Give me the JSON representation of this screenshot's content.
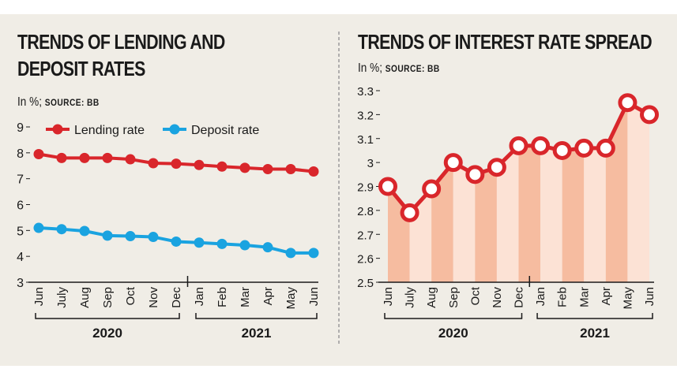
{
  "left_chart": {
    "title_line1": "TRENDS OF LENDING AND",
    "title_line2": "DEPOSIT RATES",
    "unit_text": "In %;",
    "source_text": "SOURCE: BB"
  },
  "right_chart": {
    "title": "TRENDS OF INTEREST RATE SPREAD",
    "unit_text": "In %;",
    "source_text": "SOURCE: BB"
  },
  "colors": {
    "lending": "#d9262b",
    "deposit": "#1aa3e0",
    "area_dark": "#f6bca0",
    "area_light": "#fce2d5"
  },
  "chart_data": [
    {
      "type": "line",
      "title": "TRENDS OF LENDING AND DEPOSIT RATES",
      "ylabel": "In %",
      "categories": [
        "Jun",
        "July",
        "Aug",
        "Sep",
        "Oct",
        "Nov",
        "Dec",
        "Jan",
        "Feb",
        "Mar",
        "Apr",
        "May",
        "Jun"
      ],
      "year_groups": [
        {
          "label": "2020",
          "start": 0,
          "end": 6
        },
        {
          "label": "2021",
          "start": 7,
          "end": 12
        }
      ],
      "ylim": [
        3,
        9
      ],
      "yticks": [
        "3",
        "4",
        "5",
        "6",
        "7",
        "8",
        "9"
      ],
      "series": [
        {
          "name": "Lending rate",
          "values": [
            7.95,
            7.8,
            7.8,
            7.8,
            7.75,
            7.6,
            7.58,
            7.53,
            7.47,
            7.42,
            7.37,
            7.37,
            7.28
          ]
        },
        {
          "name": "Deposit rate",
          "values": [
            5.1,
            5.05,
            4.98,
            4.8,
            4.78,
            4.75,
            4.57,
            4.53,
            4.48,
            4.43,
            4.35,
            4.13,
            4.13
          ]
        }
      ],
      "grid": false,
      "legend": "top"
    },
    {
      "type": "area",
      "title": "TRENDS OF INTEREST RATE SPREAD",
      "ylabel": "In %",
      "categories": [
        "Jun",
        "July",
        "Aug",
        "Sep",
        "Oct",
        "Nov",
        "Dec",
        "Jan",
        "Feb",
        "Mar",
        "Apr",
        "May",
        "Jun"
      ],
      "year_groups": [
        {
          "label": "2020",
          "start": 0,
          "end": 6
        },
        {
          "label": "2021",
          "start": 7,
          "end": 12
        }
      ],
      "ylim": [
        2.5,
        3.3
      ],
      "yticks": [
        "2.5",
        "2.6",
        "2.7",
        "2.8",
        "2.9",
        "3",
        "3.1",
        "3.2",
        "3.3"
      ],
      "series": [
        {
          "name": "Interest rate spread",
          "values": [
            2.9,
            2.79,
            2.89,
            3.0,
            2.95,
            2.98,
            3.07,
            3.07,
            3.05,
            3.06,
            3.06,
            3.25,
            3.2
          ]
        }
      ],
      "grid": false
    }
  ]
}
